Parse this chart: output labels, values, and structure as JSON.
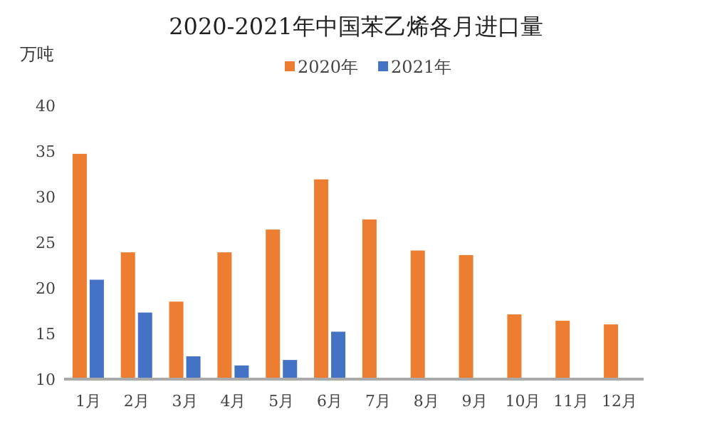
{
  "chart_data": {
    "type": "bar",
    "title": "2020-2021年中国苯乙烯各月进口量",
    "ylabel": "万吨",
    "categories": [
      "1月",
      "2月",
      "3月",
      "4月",
      "5月",
      "6月",
      "7月",
      "8月",
      "9月",
      "10月",
      "11月",
      "12月"
    ],
    "series": [
      {
        "name": "2020年",
        "color": "#ed7d31",
        "values": [
          34.7,
          23.9,
          18.5,
          23.9,
          26.4,
          31.9,
          27.5,
          24.1,
          23.6,
          17.1,
          16.4,
          16.0
        ]
      },
      {
        "name": "2021年",
        "color": "#4472c4",
        "values": [
          20.9,
          17.3,
          12.5,
          11.5,
          12.1,
          15.2,
          null,
          null,
          null,
          null,
          null,
          null
        ]
      }
    ],
    "ylim": [
      10,
      40
    ],
    "yticks": [
      10,
      15,
      20,
      25,
      30,
      35,
      40
    ],
    "legend": "top",
    "grid": false
  }
}
